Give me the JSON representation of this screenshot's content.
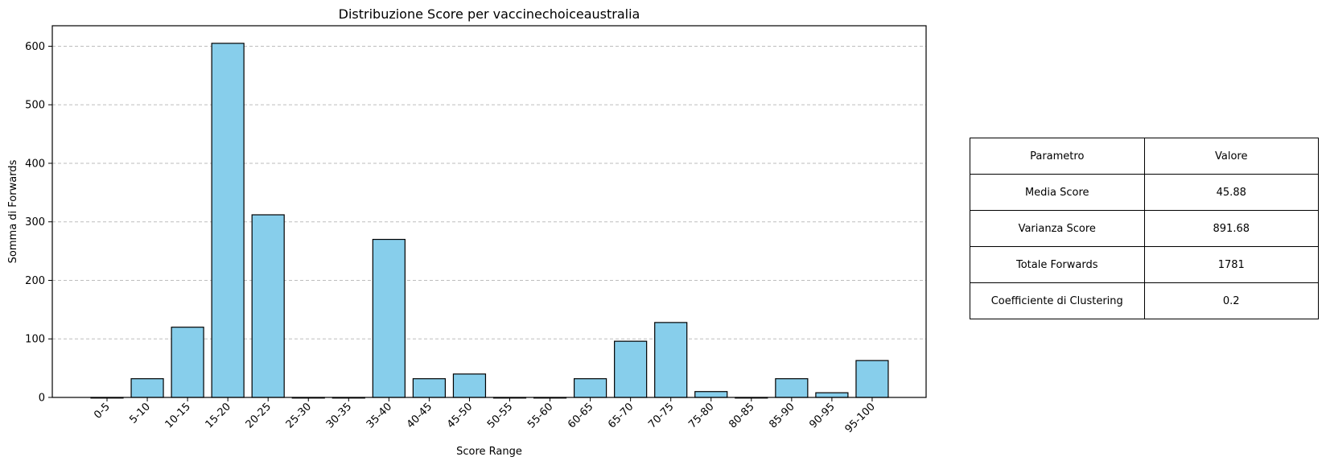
{
  "chart_data": {
    "type": "bar",
    "title": "Distribuzione Score per vaccinechoiceaustralia",
    "xlabel": "Score Range",
    "ylabel": "Somma di Forwards",
    "categories": [
      "0-5",
      "5-10",
      "10-15",
      "15-20",
      "20-25",
      "25-30",
      "30-35",
      "35-40",
      "40-45",
      "45-50",
      "50-55",
      "55-60",
      "60-65",
      "65-70",
      "70-75",
      "75-80",
      "80-85",
      "85-90",
      "90-95",
      "95-100"
    ],
    "values": [
      0,
      32,
      120,
      605,
      312,
      0,
      0,
      270,
      32,
      40,
      0,
      0,
      32,
      96,
      128,
      10,
      0,
      32,
      8,
      63
    ],
    "ylim": [
      0,
      635
    ],
    "yticks": [
      0,
      100,
      200,
      300,
      400,
      500,
      600
    ],
    "grid": "horizontal dashed",
    "bar_color": "#87ceeb",
    "edge_color": "#000000"
  },
  "table": {
    "header": [
      "Parametro",
      "Valore"
    ],
    "rows": [
      [
        "Media Score",
        "45.88"
      ],
      [
        "Varianza Score",
        "891.68"
      ],
      [
        "Totale Forwards",
        "1781"
      ],
      [
        "Coefficiente di Clustering",
        "0.2"
      ]
    ]
  }
}
